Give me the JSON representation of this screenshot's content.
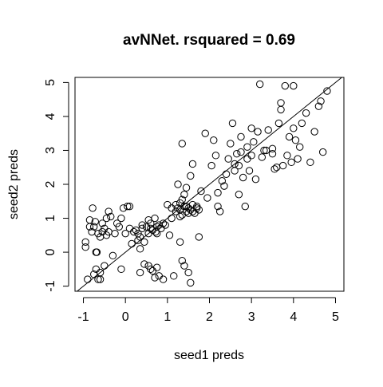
{
  "chart_data": {
    "type": "scatter",
    "title": "avNNet. rsquared = 0.69",
    "xlabel": "seed1 preds",
    "ylabel": "seed2 preds",
    "xlim": [
      -1.2,
      5.2
    ],
    "ylim": [
      -1.15,
      5.15
    ],
    "x_ticks": [
      -1,
      0,
      1,
      2,
      3,
      4,
      5
    ],
    "y_ticks": [
      -1,
      0,
      1,
      2,
      3,
      4,
      5
    ],
    "x_tick_labels": [
      "-1",
      "0",
      "1",
      "2",
      "3",
      "4",
      "5"
    ],
    "y_tick_labels": [
      "-1",
      "0",
      "1",
      "2",
      "3",
      "4",
      "5"
    ],
    "reference_line": {
      "slope": 1,
      "intercept": 0
    },
    "grid": false,
    "points": [
      [
        -0.95,
        0.3
      ],
      [
        -0.95,
        0.15
      ],
      [
        -0.85,
        0.95
      ],
      [
        -0.85,
        0.75
      ],
      [
        -0.8,
        0.6
      ],
      [
        -0.78,
        1.3
      ],
      [
        -0.75,
        0.75
      ],
      [
        -0.72,
        0.9
      ],
      [
        -0.7,
        0.0
      ],
      [
        -0.68,
        0.0
      ],
      [
        -0.65,
        0.55
      ],
      [
        -0.6,
        0.45
      ],
      [
        -0.55,
        0.85
      ],
      [
        -0.5,
        0.7
      ],
      [
        -0.45,
        0.5
      ],
      [
        -0.45,
        1.0
      ],
      [
        -0.4,
        0.6
      ],
      [
        -0.4,
        1.2
      ],
      [
        -0.35,
        1.05
      ],
      [
        -0.9,
        -0.8
      ],
      [
        -0.75,
        -0.65
      ],
      [
        -0.7,
        -0.5
      ],
      [
        -0.65,
        -0.8
      ],
      [
        -0.6,
        -0.6
      ],
      [
        -0.5,
        -0.4
      ],
      [
        -0.3,
        -0.1
      ],
      [
        -0.2,
        0.85
      ],
      [
        -0.15,
        0.75
      ],
      [
        -0.1,
        1.0
      ],
      [
        -0.1,
        -0.5
      ],
      [
        -0.05,
        1.3
      ],
      [
        0.05,
        1.35
      ],
      [
        0.1,
        0.7
      ],
      [
        0.15,
        0.25
      ],
      [
        0.2,
        0.6
      ],
      [
        0.25,
        0.65
      ],
      [
        0.3,
        0.35
      ],
      [
        0.3,
        0.55
      ],
      [
        0.35,
        0.45
      ],
      [
        0.35,
        0.1
      ],
      [
        0.4,
        0.7
      ],
      [
        0.4,
        0.8
      ],
      [
        0.45,
        0.3
      ],
      [
        0.5,
        0.75
      ],
      [
        0.55,
        0.55
      ],
      [
        0.55,
        0.95
      ],
      [
        0.6,
        0.85
      ],
      [
        0.6,
        0.7
      ],
      [
        0.65,
        0.65
      ],
      [
        0.7,
        1.0
      ],
      [
        0.72,
        0.6
      ],
      [
        0.75,
        0.75
      ],
      [
        0.75,
        0.55
      ],
      [
        0.8,
        0.8
      ],
      [
        0.85,
        0.7
      ],
      [
        0.9,
        0.85
      ],
      [
        0.45,
        -0.35
      ],
      [
        0.55,
        -0.4
      ],
      [
        0.6,
        -0.5
      ],
      [
        0.65,
        -0.55
      ],
      [
        0.7,
        -0.75
      ],
      [
        0.75,
        -0.45
      ],
      [
        0.8,
        -0.7
      ],
      [
        0.9,
        -0.8
      ],
      [
        0.35,
        -0.6
      ],
      [
        1.05,
        0.5
      ],
      [
        1.1,
        1.0
      ],
      [
        1.15,
        -0.7
      ],
      [
        1.2,
        1.4
      ],
      [
        1.25,
        1.3
      ],
      [
        1.25,
        2.0
      ],
      [
        1.3,
        1.45
      ],
      [
        1.3,
        1.25
      ],
      [
        1.3,
        0.3
      ],
      [
        1.35,
        1.1
      ],
      [
        1.35,
        1.55
      ],
      [
        1.35,
        -0.25
      ],
      [
        1.4,
        1.7
      ],
      [
        1.4,
        1.35
      ],
      [
        1.4,
        -0.4
      ],
      [
        1.45,
        1.2
      ],
      [
        1.45,
        1.9
      ],
      [
        1.5,
        1.3
      ],
      [
        1.5,
        1.15
      ],
      [
        1.5,
        -0.6
      ],
      [
        1.55,
        1.25
      ],
      [
        1.55,
        2.25
      ],
      [
        1.55,
        -0.9
      ],
      [
        1.6,
        1.4
      ],
      [
        1.6,
        2.6
      ],
      [
        1.65,
        1.15
      ],
      [
        1.7,
        1.3
      ],
      [
        1.75,
        0.45
      ],
      [
        1.75,
        1.25
      ],
      [
        1.8,
        1.8
      ],
      [
        1.9,
        3.5
      ],
      [
        1.95,
        1.6
      ],
      [
        2.05,
        2.55
      ],
      [
        2.1,
        3.3
      ],
      [
        2.15,
        2.85
      ],
      [
        2.2,
        1.35
      ],
      [
        2.2,
        1.75
      ],
      [
        2.25,
        1.2
      ],
      [
        2.3,
        2.1
      ],
      [
        2.35,
        1.95
      ],
      [
        2.4,
        2.3
      ],
      [
        2.45,
        2.75
      ],
      [
        2.5,
        3.2
      ],
      [
        2.55,
        3.8
      ],
      [
        2.6,
        2.6
      ],
      [
        2.65,
        2.9
      ],
      [
        2.7,
        1.7
      ],
      [
        2.7,
        2.55
      ],
      [
        2.75,
        3.4
      ],
      [
        2.8,
        2.2
      ],
      [
        2.85,
        1.35
      ],
      [
        2.9,
        3.1
      ],
      [
        2.95,
        2.4
      ],
      [
        3.0,
        2.85
      ],
      [
        3.0,
        3.65
      ],
      [
        3.05,
        3.25
      ],
      [
        3.1,
        2.15
      ],
      [
        3.15,
        3.55
      ],
      [
        3.2,
        4.95
      ],
      [
        3.25,
        2.8
      ],
      [
        3.3,
        3.0
      ],
      [
        3.4,
        3.6
      ],
      [
        3.5,
        2.9
      ],
      [
        3.55,
        2.45
      ],
      [
        3.6,
        2.5
      ],
      [
        3.65,
        3.8
      ],
      [
        3.7,
        4.2
      ],
      [
        3.7,
        4.4
      ],
      [
        3.75,
        2.55
      ],
      [
        3.8,
        4.9
      ],
      [
        3.85,
        2.85
      ],
      [
        3.9,
        3.4
      ],
      [
        3.95,
        2.65
      ],
      [
        4.0,
        3.65
      ],
      [
        4.0,
        4.9
      ],
      [
        4.05,
        3.3
      ],
      [
        4.1,
        2.75
      ],
      [
        4.15,
        3.1
      ],
      [
        4.2,
        3.8
      ],
      [
        4.3,
        4.1
      ],
      [
        4.4,
        2.65
      ],
      [
        4.5,
        3.55
      ],
      [
        4.6,
        4.3
      ],
      [
        4.65,
        4.45
      ],
      [
        4.7,
        2.95
      ],
      [
        4.8,
        4.75
      ],
      [
        3.5,
        3.05
      ],
      [
        3.35,
        3.0
      ],
      [
        2.6,
        2.4
      ],
      [
        2.9,
        2.75
      ],
      [
        2.75,
        2.95
      ],
      [
        1.0,
        1.4
      ],
      [
        1.1,
        1.3
      ],
      [
        1.2,
        1.2
      ],
      [
        1.3,
        1.05
      ],
      [
        1.45,
        1.35
      ],
      [
        1.6,
        1.2
      ],
      [
        1.7,
        1.35
      ],
      [
        0.95,
        0.8
      ],
      [
        -0.25,
        0.55
      ],
      [
        -0.55,
        0.6
      ],
      [
        -0.6,
        -0.8
      ],
      [
        0.0,
        0.55
      ],
      [
        0.1,
        1.35
      ],
      [
        1.35,
        3.2
      ]
    ]
  }
}
